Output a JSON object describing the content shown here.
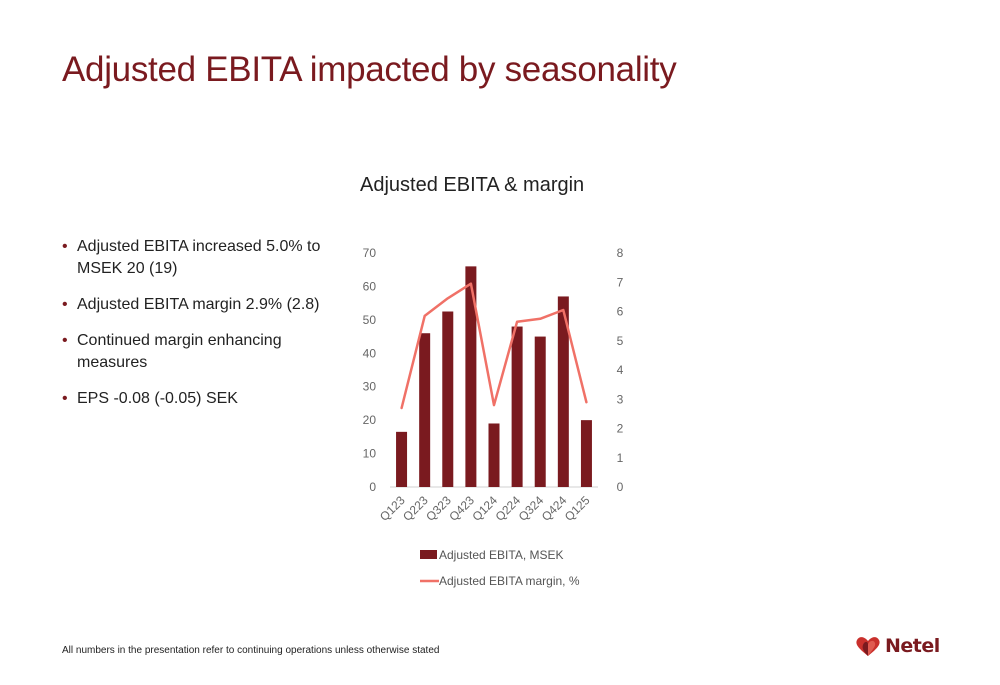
{
  "slide": {
    "title": "Adjusted EBITA impacted by seasonality",
    "footnote": "All numbers in the presentation refer to continuing operations unless otherwise stated",
    "logo_text": "Netel",
    "bullets": [
      "Adjusted EBITA increased 5.0% to MSEK 20 (19)",
      "Adjusted EBITA margin 2.9% (2.8)",
      "Continued margin enhancing measures",
      "EPS -0.08 (-0.05) SEK"
    ]
  },
  "colors": {
    "title": "#7a1a1f",
    "bar": "#7a1a1f",
    "line": "#f07167",
    "logo": "#7a1a1f"
  },
  "chart_data": {
    "type": "bar",
    "title": "Adjusted EBITA & margin",
    "categories": [
      "Q123",
      "Q223",
      "Q323",
      "Q423",
      "Q124",
      "Q224",
      "Q324",
      "Q424",
      "Q125"
    ],
    "series": [
      {
        "name": "Adjusted EBITA, MSEK",
        "type": "bar",
        "axis": "left",
        "values": [
          16.5,
          46,
          52.5,
          66,
          19,
          48,
          45,
          57,
          20
        ]
      },
      {
        "name": "Adjusted EBITA margin, %",
        "type": "line",
        "axis": "right",
        "values": [
          2.7,
          5.85,
          6.45,
          6.95,
          2.8,
          5.65,
          5.75,
          6.05,
          2.9
        ]
      }
    ],
    "y_left": {
      "min": 0,
      "max": 70,
      "ticks": [
        0,
        10,
        20,
        30,
        40,
        50,
        60,
        70
      ]
    },
    "y_right": {
      "min": 0,
      "max": 8,
      "ticks": [
        0,
        1,
        2,
        3,
        4,
        5,
        6,
        7,
        8
      ]
    },
    "grid": false,
    "legend": "bottom"
  }
}
